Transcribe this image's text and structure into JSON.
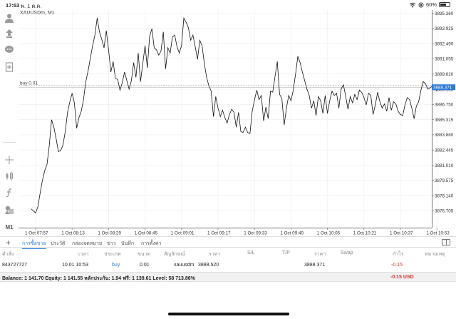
{
  "status": {
    "time": "17:53",
    "date": "พ. 1 ต.ค.",
    "battery": "60%",
    "battery_level": 0.6,
    "icons": [
      "wifi-icon",
      "orientation-lock-icon",
      "battery-icon"
    ]
  },
  "chart": {
    "title": "XAUUSDm, M1",
    "order_line_label": "buy 0.01",
    "current_price": "3888.371",
    "accent_color": "#2a7bd8",
    "price_ticks": [
      "3895.360",
      "3893.925",
      "3892.490",
      "3891.055",
      "3889.620",
      "3888.185",
      "3886.750",
      "3885.315",
      "3883.880",
      "3882.445",
      "3881.010",
      "3879.575",
      "3878.140",
      "3876.705"
    ],
    "time_ticks": [
      "1 Oct 07:57",
      "1 Oct 08:13",
      "1 Oct 08:29",
      "1 Oct 08:45",
      "1 Oct 09:01",
      "1 Oct 09:17",
      "1 Oct 09:33",
      "1 Oct 09:49",
      "1 Oct 10:05",
      "1 Oct 10:21",
      "1 Oct 10:37",
      "1 Oct 10:53"
    ]
  },
  "toolbar": {
    "timeframe": "M1",
    "icons": [
      "account-icon",
      "trade-icon",
      "chat-icon",
      "add-document-icon",
      "crosshair-icon",
      "candles-icon",
      "function-icon",
      "objects-icon"
    ]
  },
  "tabs": [
    {
      "label": "การซื้อขาย",
      "active": true
    },
    {
      "label": "ประวัติ",
      "active": false
    },
    {
      "label": "กล่องจดหมาย",
      "active": false
    },
    {
      "label": "ข่าว",
      "active": false
    },
    {
      "label": "บันทึก",
      "active": false
    },
    {
      "label": "การตั้งค่า",
      "active": false
    }
  ],
  "table": {
    "headers": [
      "คำสั่ง",
      "เวลา",
      "ประเภท",
      "ขนาด",
      "สัญลักษณ์",
      "ราคา",
      "S/L",
      "T/P",
      "ราคา",
      "Swap",
      "กำไร",
      "หมายเหตุ"
    ],
    "row": {
      "order": "843727727",
      "time": "10.01 10:53",
      "type": "buy",
      "size": "0.01",
      "symbol": "xauusdm",
      "open_price": "3888.520",
      "sl": "",
      "tp": "",
      "price": "3888.371",
      "swap": "",
      "profit": "-0.15",
      "comment": ""
    }
  },
  "balance": {
    "text": "Balance: 1 141.70 Equity: 1 141.55 หลักประกัน: 1.94 ฟรี: 1 139.61 Level: 58 713.86%",
    "profit": "-0.15  USD"
  },
  "chart_data": {
    "type": "line",
    "symbol": "XAUUSDm",
    "timeframe": "M1",
    "x": [
      "07:55",
      "07:57",
      "07:58",
      "07:59",
      "08:00",
      "08:01",
      "08:02",
      "08:03",
      "08:04",
      "08:05",
      "08:06",
      "08:07",
      "08:08",
      "08:09",
      "08:10",
      "08:11",
      "08:12",
      "08:13",
      "08:14",
      "08:15",
      "08:16",
      "08:17",
      "08:18",
      "08:19",
      "08:20",
      "08:21",
      "08:22",
      "08:23",
      "08:24",
      "08:25",
      "08:26",
      "08:27",
      "08:28",
      "08:29",
      "08:30",
      "08:31",
      "08:32",
      "08:33",
      "08:34",
      "08:35",
      "08:36",
      "08:37",
      "08:38",
      "08:39",
      "08:40",
      "08:41",
      "08:42",
      "08:43",
      "08:44",
      "08:45",
      "08:46",
      "08:47",
      "08:48",
      "08:49",
      "08:50",
      "08:51",
      "08:52",
      "08:53",
      "08:54",
      "08:55",
      "08:56",
      "08:57",
      "08:58",
      "08:59",
      "09:00",
      "09:01",
      "09:02",
      "09:03",
      "09:04",
      "09:05",
      "09:06",
      "09:07",
      "09:08",
      "09:09",
      "09:10",
      "09:11",
      "09:12",
      "09:13",
      "09:14",
      "09:15",
      "09:16",
      "09:17",
      "09:18",
      "09:19",
      "09:20",
      "09:21",
      "09:22",
      "09:23",
      "09:24",
      "09:25",
      "09:26",
      "09:27",
      "09:28",
      "09:29",
      "09:30",
      "09:31",
      "09:32",
      "09:33",
      "09:34",
      "09:35",
      "09:36",
      "09:37",
      "09:38",
      "09:39",
      "09:40",
      "09:41",
      "09:42",
      "09:43",
      "09:44",
      "09:45",
      "09:46",
      "09:47",
      "09:48",
      "09:49",
      "09:50",
      "09:51",
      "09:52",
      "09:53",
      "09:54",
      "09:55",
      "09:56",
      "09:57",
      "09:58",
      "09:59",
      "10:00",
      "10:01",
      "10:02",
      "10:03",
      "10:04",
      "10:05",
      "10:06",
      "10:07",
      "10:08",
      "10:09",
      "10:10",
      "10:11",
      "10:12",
      "10:13",
      "10:14",
      "10:15",
      "10:16",
      "10:17",
      "10:18",
      "10:19",
      "10:20",
      "10:21",
      "10:22",
      "10:23",
      "10:24",
      "10:25",
      "10:26",
      "10:27",
      "10:28",
      "10:29",
      "10:30",
      "10:31",
      "10:32",
      "10:33",
      "10:34",
      "10:35",
      "10:36",
      "10:37",
      "10:38",
      "10:39",
      "10:40",
      "10:41",
      "10:42",
      "10:43",
      "10:44",
      "10:45",
      "10:46",
      "10:47",
      "10:48",
      "10:49",
      "10:50",
      "10:51",
      "10:52",
      "10:53"
    ],
    "y": [
      3876.9,
      3876.5,
      3877.1,
      3878.4,
      3879.6,
      3880.5,
      3881.1,
      3882.9,
      3885.3,
      3884.6,
      3883.5,
      3882.3,
      3882.4,
      3882.9,
      3884.2,
      3886.0,
      3887.0,
      3887.8,
      3886.9,
      3884.5,
      3885.5,
      3886.1,
      3887.2,
      3888.9,
      3889.9,
      3891.1,
      3892.3,
      3893.3,
      3894.9,
      3893.6,
      3892.9,
      3892.1,
      3893.7,
      3891.9,
      3889.8,
      3890.8,
      3889.2,
      3889.1,
      3888.1,
      3888.8,
      3889.8,
      3889.0,
      3888.2,
      3889.0,
      3890.7,
      3889.3,
      3891.6,
      3888.9,
      3890.6,
      3892.3,
      3890.2,
      3893.2,
      3893.9,
      3892.1,
      3891.9,
      3891.4,
      3891.8,
      3893.6,
      3890.1,
      3892.1,
      3891.6,
      3893.1,
      3893.3,
      3892.2,
      3891.6,
      3892.3,
      3894.9,
      3894.5,
      3894.0,
      3892.8,
      3893.3,
      3892.2,
      3891.0,
      3892.8,
      3892.3,
      3890.6,
      3889.3,
      3888.5,
      3888.0,
      3885.6,
      3887.5,
      3886.4,
      3885.6,
      3886.2,
      3885.5,
      3885.0,
      3885.8,
      3886.3,
      3886.0,
      3884.6,
      3886.0,
      3884.2,
      3884.1,
      3884.6,
      3884.1,
      3884.0,
      3886.1,
      3887.2,
      3888.1,
      3887.2,
      3887.6,
      3885.2,
      3886.5,
      3885.4,
      3888.0,
      3887.9,
      3889.4,
      3890.8,
      3887.7,
      3887.3,
      3884.8,
      3886.4,
      3887.6,
      3887.1,
      3888.1,
      3889.6,
      3891.3,
      3890.7,
      3889.8,
      3889.0,
      3888.2,
      3887.6,
      3886.4,
      3887.1,
      3885.7,
      3887.5,
      3887.1,
      3885.9,
      3887.6,
      3885.9,
      3887.1,
      3888.0,
      3887.6,
      3887.8,
      3886.4,
      3888.2,
      3888.6,
      3887.5,
      3886.3,
      3887.5,
      3886.9,
      3887.7,
      3887.2,
      3888.1,
      3887.9,
      3887.4,
      3886.7,
      3887.8,
      3887.6,
      3885.8,
      3886.7,
      3887.9,
      3887.0,
      3886.4,
      3886.8,
      3886.1,
      3887.4,
      3886.2,
      3887.0,
      3886.8,
      3886.1,
      3885.8,
      3885.7,
      3886.7,
      3887.4,
      3887.2,
      3886.4,
      3885.4,
      3886.6,
      3887.0,
      3888.1,
      3888.9,
      3888.7,
      3888.2,
      3888.3,
      3888.5,
      3888.4,
      3888.0
    ],
    "order_price": 3888.52,
    "bid": 3888.371,
    "ylim": [
      3876.0,
      3896.0
    ]
  }
}
